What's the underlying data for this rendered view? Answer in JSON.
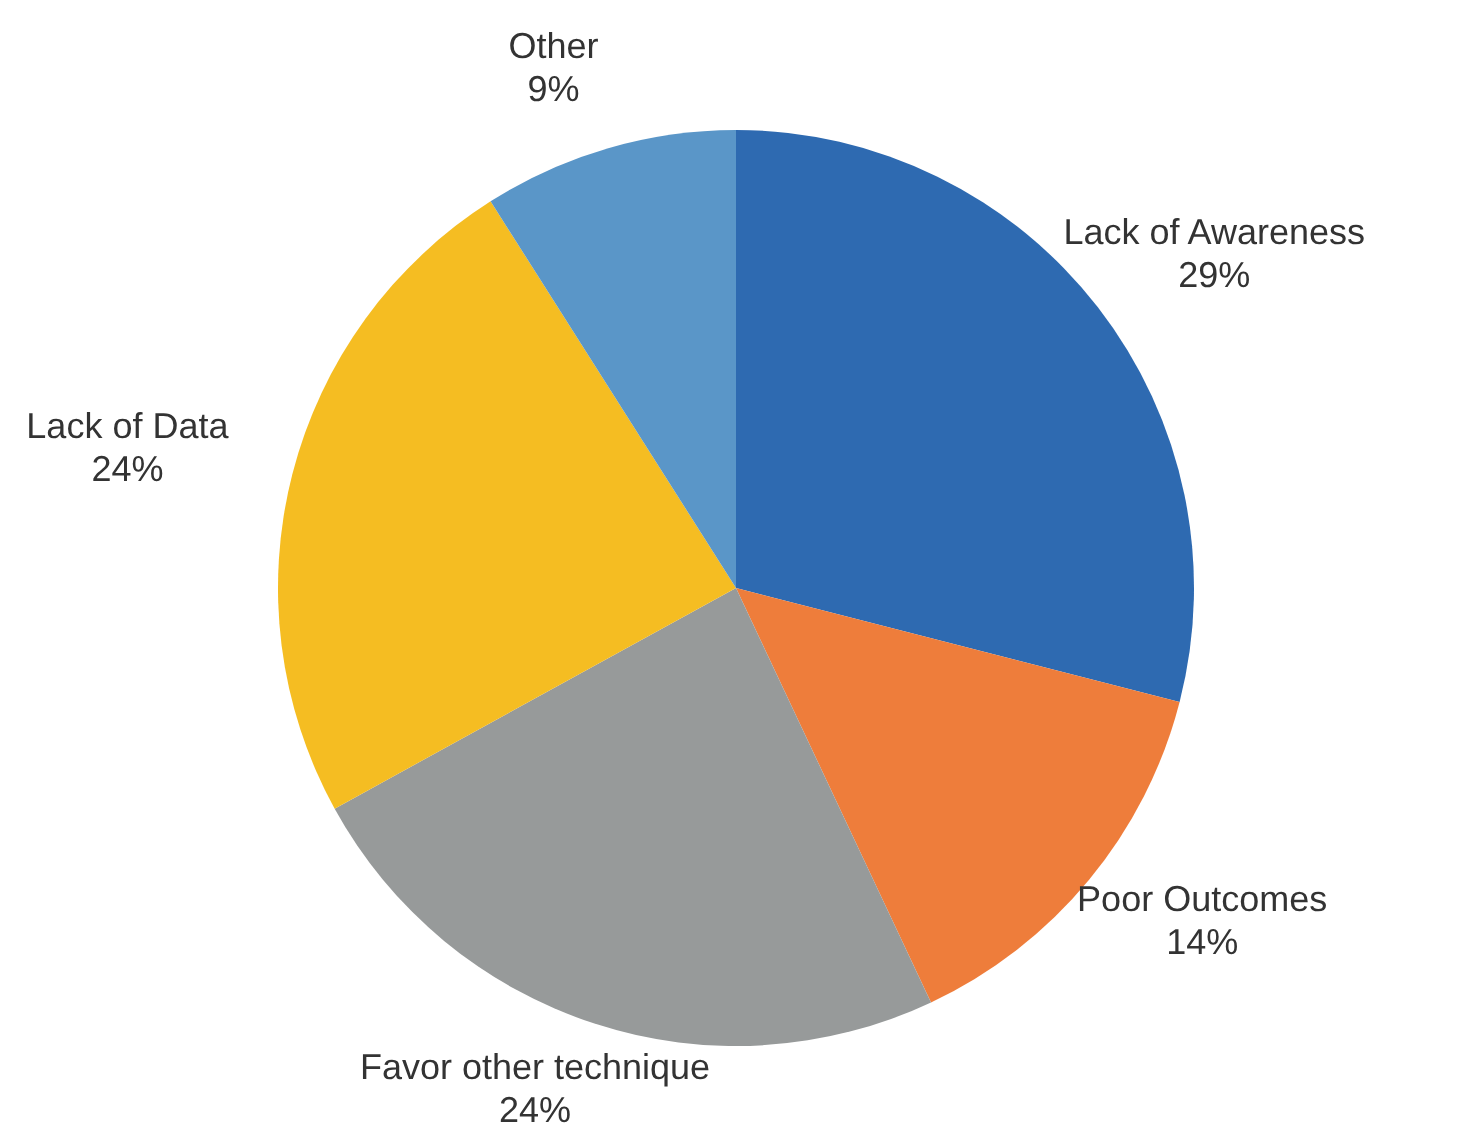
{
  "chart_data": {
    "type": "pie",
    "categories": [
      "Lack of Awareness",
      "Poor Outcomes",
      "Favor other technique",
      "Lack of Data",
      "Other"
    ],
    "values": [
      29,
      14,
      24,
      24,
      9
    ],
    "colors": [
      "#2e6ab1",
      "#ee7d3b",
      "#979a9a",
      "#f5bd22",
      "#5a96c8"
    ],
    "value_labels": [
      "29%",
      "14%",
      "24%",
      "24%",
      "9%"
    ],
    "legend": false
  }
}
